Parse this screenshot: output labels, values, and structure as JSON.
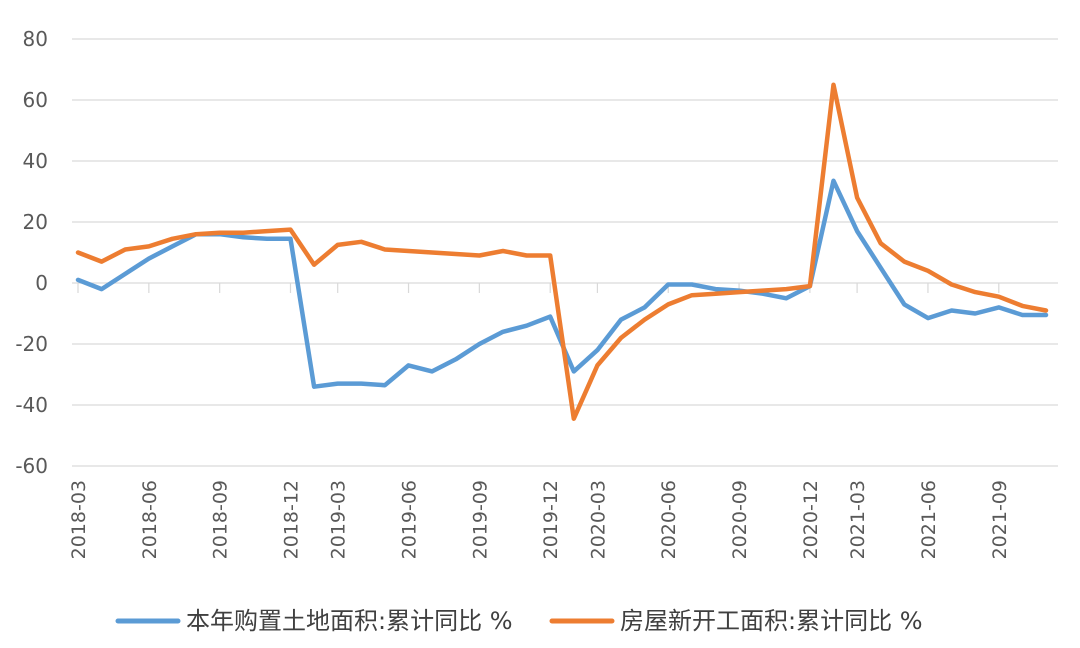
{
  "chart_data": {
    "type": "line",
    "title": "",
    "xlabel": "",
    "ylabel": "",
    "ylim": [
      -60,
      80
    ],
    "yticks": [
      80,
      60,
      40,
      20,
      0,
      -20,
      -40,
      -60
    ],
    "grid": true,
    "legend_position": "bottom",
    "x": [
      "2018-03",
      "2018-04",
      "2018-05",
      "2018-06",
      "2018-07",
      "2018-08",
      "2018-09",
      "2018-10",
      "2018-11",
      "2018-12",
      "2019-02",
      "2019-03",
      "2019-04",
      "2019-05",
      "2019-06",
      "2019-07",
      "2019-08",
      "2019-09",
      "2019-10",
      "2019-11",
      "2019-12",
      "2020-02",
      "2020-03",
      "2020-04",
      "2020-05",
      "2020-06",
      "2020-07",
      "2020-08",
      "2020-09",
      "2020-10",
      "2020-11",
      "2020-12",
      "2021-02",
      "2021-03",
      "2021-04",
      "2021-05",
      "2021-06",
      "2021-07",
      "2021-08",
      "2021-09",
      "2021-10",
      "2021-11"
    ],
    "x_tick_labels": [
      "2018-03",
      "2018-06",
      "2018-09",
      "2018-12",
      "2019-03",
      "2019-06",
      "2019-09",
      "2019-12",
      "2020-03",
      "2020-06",
      "2020-09",
      "2020-12",
      "2021-03",
      "2021-06",
      "2021-09"
    ],
    "series": [
      {
        "name": "本年购置土地面积:累计同比 %",
        "color": "#5b9bd5",
        "values": [
          1,
          -2,
          3,
          8,
          12,
          16,
          16,
          15,
          14.5,
          14.5,
          -34,
          -33,
          -33,
          -33.5,
          -27,
          -29,
          -25,
          -20,
          -16,
          -14,
          -11,
          -29,
          -22,
          -12,
          -8,
          -0.5,
          -0.5,
          -2,
          -2.5,
          -3.5,
          -5,
          -1,
          33.5,
          17,
          5,
          -7,
          -11.5,
          -9,
          -10,
          -8,
          -10.5,
          -10.5
        ]
      },
      {
        "name": "房屋新开工面积:累计同比 %",
        "color": "#ed7d31",
        "values": [
          10,
          7,
          11,
          12,
          14.5,
          16,
          16.5,
          16.5,
          17,
          17.5,
          6,
          12.5,
          13.5,
          11,
          10.5,
          10,
          9.5,
          9,
          10.5,
          9,
          9,
          -44.5,
          -27,
          -18,
          -12,
          -7,
          -4,
          -3.5,
          -3,
          -2.5,
          -2,
          -1,
          65,
          28,
          13,
          7,
          4,
          -0.5,
          -3,
          -4.5,
          -7.5,
          -9
        ]
      }
    ]
  }
}
